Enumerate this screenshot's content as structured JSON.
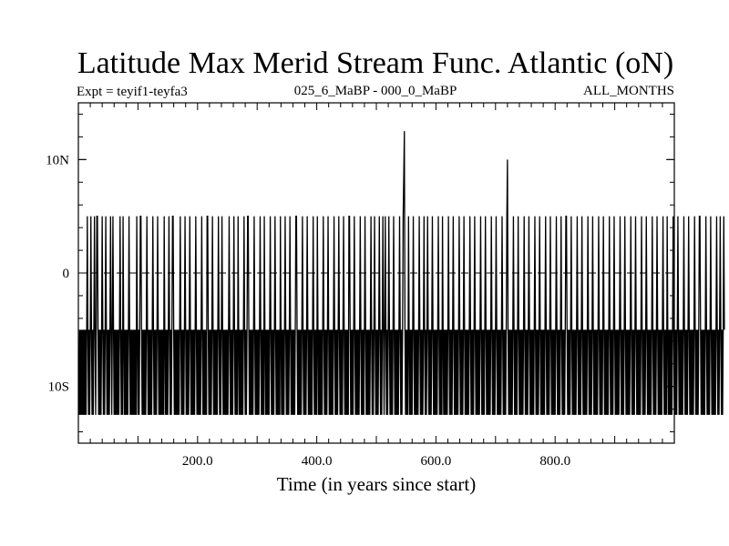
{
  "chart_data": {
    "type": "line",
    "title": "Latitude Max Merid Stream Func. Atlantic (oN)",
    "subtitle_left": "Expt = teyif1-teyfa3",
    "subtitle_center": "025_6_MaBP - 000_0_MaBP",
    "subtitle_right": "ALL_MONTHS",
    "xlabel": "Time (in years since start)",
    "ylabel": "",
    "xlim": [
      0,
      1000
    ],
    "ylim": [
      -15,
      15
    ],
    "x_ticks": [
      {
        "value": 200,
        "label": "200.0"
      },
      {
        "value": 400,
        "label": "400.0"
      },
      {
        "value": 600,
        "label": "600.0"
      },
      {
        "value": 800,
        "label": "800.0"
      }
    ],
    "y_ticks": [
      {
        "value": 10,
        "label": "10N"
      },
      {
        "value": 0,
        "label": "0"
      },
      {
        "value": -10,
        "label": "10S"
      }
    ],
    "zero_line": {
      "value": 0,
      "style": "dashed"
    },
    "grid": false,
    "legend": "none",
    "line_color": "#000000",
    "series": [
      {
        "x_start": 1,
        "x_step": 1,
        "y": [
          -12.5,
          -5,
          -12.5,
          -5,
          -12.5,
          -5,
          -12.5,
          -5,
          -12.5,
          -5,
          -12.5,
          -5,
          -12.5,
          -5,
          5,
          -5,
          -12.5,
          -5,
          -12.5,
          -5,
          5,
          -5,
          -12.5,
          -5,
          -12.5,
          -5,
          5,
          -5,
          -12.5,
          -5,
          5,
          5,
          -5,
          -12.5,
          -5,
          -12.5,
          -5,
          -12.5,
          -5,
          5,
          -5,
          -12.5,
          -5,
          -12.5,
          -5,
          5,
          -5,
          -12.5,
          -5,
          -12.5,
          -5,
          -12.5,
          -5,
          5,
          -5,
          -12.5,
          -5,
          5,
          -5,
          -12.5,
          -5,
          -12.5,
          -5,
          -12.5,
          -5,
          -12.5,
          -5,
          -12.5,
          -5,
          5,
          -5,
          -12.5,
          -5,
          -12.5,
          5,
          -5,
          -12.5,
          -5,
          -12.5,
          -5,
          -12.5,
          -5,
          -12.5,
          -5,
          5,
          -5,
          -12.5,
          -5,
          -12.5,
          -5,
          -12.5,
          -5,
          -12.5,
          -5,
          -12.5,
          -5,
          -12.5,
          5,
          -5,
          -12.5,
          -5,
          -12.5,
          -5,
          5,
          5,
          -5,
          -12.5,
          -5,
          -12.5,
          -5,
          -12.5,
          -5,
          -12.5,
          -5,
          5,
          -5,
          -12.5,
          -5,
          -12.5,
          -5,
          -12.5,
          -5,
          -12.5,
          -5,
          5,
          -5,
          -12.5,
          -5,
          -12.5,
          -5,
          -12.5,
          -5,
          5,
          -5,
          -12.5,
          -5,
          -12.5,
          -5,
          -12.5,
          -5,
          -12.5,
          -5,
          -12.5,
          5,
          -5,
          -12.5,
          -5,
          -12.5,
          -5,
          -12.5,
          -5,
          5,
          -5,
          -12.5,
          -5,
          -12.5,
          -5,
          5,
          5,
          -5,
          -12.5,
          -5,
          -12.5,
          -5,
          -12.5,
          -5,
          -12.5,
          -5,
          -12.5,
          -5,
          5,
          -5,
          -12.5,
          -5,
          -12.5,
          -5,
          -12.5,
          -5,
          5,
          -5,
          -12.5,
          -5,
          -12.5,
          -5,
          -12.5,
          -5,
          5,
          -5,
          -12.5,
          -5,
          -12.5,
          -5,
          -12.5,
          -5,
          -12.5,
          -5,
          5,
          -5,
          -12.5,
          -5,
          -12.5,
          -5,
          -12.5,
          -5,
          -12.5,
          -5,
          5,
          -5,
          -12.5,
          -5,
          -12.5,
          -5,
          -12.5,
          -5,
          -12.5,
          5,
          5,
          -5,
          -12.5,
          -5,
          -12.5,
          -5,
          -12.5,
          -5,
          5,
          -5,
          -12.5,
          -5,
          -12.5,
          -5,
          -12.5,
          -5,
          -12.5,
          -5,
          5,
          -5,
          -12.5,
          -5,
          -12.5,
          -5,
          5,
          -5,
          -12.5,
          -5,
          -12.5,
          -5,
          -12.5,
          -5,
          -12.5,
          -5,
          -12.5,
          -5,
          5,
          -5,
          -12.5,
          -5,
          -12.5,
          -5,
          -12.5,
          -5,
          5,
          -5,
          -12.5,
          -5,
          -12.5,
          -5,
          -12.5,
          5,
          -5,
          -12.5,
          -5,
          -12.5,
          -5,
          -12.5,
          -5,
          -12.5,
          -5,
          5,
          -5,
          -12.5,
          -5,
          -12.5,
          -5,
          5,
          5,
          -5,
          -12.5,
          -5,
          -12.5,
          -5,
          -12.5,
          -5,
          -12.5,
          -5,
          5,
          -5,
          -12.5,
          -5,
          -12.5,
          -5,
          -12.5,
          -5,
          -12.5,
          -5,
          5,
          -5,
          -12.5,
          -5,
          -12.5,
          -5,
          -12.5,
          5,
          -5,
          -12.5,
          -5,
          -12.5,
          -5,
          -12.5,
          -5,
          -12.5,
          -5,
          5,
          -5,
          -12.5,
          -5,
          -12.5,
          -5,
          -12.5,
          -5,
          5,
          -5,
          -12.5,
          -5,
          -12.5,
          -5,
          -12.5,
          -5,
          -12.5,
          5,
          -5,
          -12.5,
          -5,
          -12.5,
          -5,
          -12.5,
          -5,
          5,
          -5,
          -12.5,
          -5,
          -12.5,
          -5,
          -12.5,
          -5,
          5,
          -5,
          -12.5,
          -5,
          -12.5,
          -5,
          -12.5,
          -5,
          -12.5,
          -5,
          5,
          5,
          -5,
          -12.5,
          -5,
          -12.5,
          -5,
          -12.5,
          -5,
          -12.5,
          -5,
          5,
          -5,
          -12.5,
          -5,
          -12.5,
          -5,
          -12.5,
          -5,
          5,
          -5,
          -12.5,
          -5,
          -12.5,
          -5,
          -12.5,
          -5,
          -12.5,
          -5,
          5,
          -5,
          -12.5,
          -5,
          -12.5,
          -5,
          -12.5,
          5,
          -5,
          -12.5,
          -5,
          -12.5,
          -5,
          -12.5,
          -5,
          -12.5,
          -5,
          5,
          -5,
          -12.5,
          -5,
          -12.5,
          -5,
          -12.5,
          -5,
          5,
          -5,
          -12.5,
          -5,
          -12.5,
          -5,
          -12.5,
          -5,
          -12.5,
          -5,
          5,
          -5,
          -12.5,
          -5,
          -12.5,
          -5,
          -12.5,
          -5,
          5,
          -5,
          -12.5,
          -5,
          -12.5,
          -5,
          -12.5,
          -5,
          5,
          -5,
          -12.5,
          -5,
          -12.5,
          -5,
          -12.5,
          -5,
          -12.5,
          5,
          5,
          -5,
          -12.5,
          -5,
          -12.5,
          -5,
          -12.5,
          -5,
          5,
          -5,
          -12.5,
          -5,
          -12.5,
          -5,
          -12.5,
          -5,
          -12.5,
          -5,
          5,
          -5,
          -12.5,
          -5,
          -12.5,
          -5,
          -12.5,
          -5,
          5,
          -5,
          -12.5,
          -5,
          -12.5,
          -5,
          -12.5,
          -5,
          -12.5,
          -5,
          5,
          -5,
          -12.5,
          -5,
          -12.5,
          -5,
          5,
          -5,
          -12.5,
          -5,
          -12.5,
          -5,
          -12.5,
          -5,
          5,
          -5,
          -12.5,
          -5,
          -12.5,
          -5,
          5,
          -5,
          -12.5,
          -5,
          5,
          -5,
          -12.5,
          -5,
          -12.5,
          -5,
          5,
          -5,
          -12.5,
          -5,
          -12.5,
          -5,
          -12.5,
          -5,
          5,
          -5,
          -12.5,
          -5,
          -12.5,
          -5,
          -12.5,
          -5,
          -12.5,
          -5,
          5,
          -5,
          -12.5,
          -5,
          -12.5,
          -5,
          5,
          8.5,
          12.5,
          -5,
          -12.5,
          -5,
          -12.5,
          -5,
          -12.5,
          5,
          -5,
          -12.5,
          -5,
          -12.5,
          -5,
          -12.5,
          -5,
          5,
          -5,
          -12.5,
          -5,
          -12.5,
          -5,
          -12.5,
          -5,
          -12.5,
          -5,
          5,
          -5,
          -12.5,
          -5,
          -12.5,
          -5,
          -12.5,
          -5,
          5,
          -5,
          -12.5,
          -5,
          -12.5,
          -5,
          5,
          -5,
          -12.5,
          -5,
          -12.5,
          -5,
          -12.5,
          -5,
          5,
          -5,
          -12.5,
          -5,
          -12.5,
          -5,
          -12.5,
          -5,
          -12.5,
          -5,
          5,
          -5,
          -12.5,
          -5,
          -12.5,
          -5,
          -12.5,
          5,
          -5,
          -12.5,
          -5,
          -12.5,
          -5,
          -12.5,
          -5,
          -12.5,
          -5,
          5,
          -5,
          -12.5,
          -5,
          -12.5,
          -5,
          -12.5,
          -5,
          5,
          -5,
          -12.5,
          -5,
          -12.5,
          -5,
          -12.5,
          -5,
          -12.5,
          -5,
          5,
          -5,
          -12.5,
          -5,
          -12.5,
          -5,
          -12.5,
          -5,
          5,
          -5,
          -12.5,
          -5,
          -12.5,
          -5,
          -12.5,
          -5,
          -12.5,
          -5,
          5,
          -5,
          -12.5,
          -5,
          -12.5,
          -5,
          -12.5,
          -5,
          5,
          -5,
          -12.5,
          -5,
          -12.5,
          -5,
          -12.5,
          -5,
          -12.5,
          -5,
          5,
          -5,
          -12.5,
          -5,
          -12.5,
          -5,
          -12.5,
          -5,
          5,
          -5,
          -12.5,
          -5,
          -12.5,
          -5,
          -12.5,
          -5,
          -12.5,
          -5,
          5,
          -5,
          -12.5,
          -5,
          -12.5,
          -5,
          -12.5,
          -5,
          5,
          -5,
          -12.5,
          -5,
          -12.5,
          -5,
          -12.5,
          -5,
          -12.5,
          -5,
          5,
          -5,
          -12.5,
          -5,
          -12.5,
          -5,
          -12.5,
          -5,
          5,
          10,
          -5,
          -12.5,
          -5,
          -12.5,
          -5,
          -12.5,
          -5,
          -12.5,
          -5,
          5,
          -5,
          -12.5,
          -5,
          -12.5,
          -5,
          -12.5,
          -5,
          5,
          -5,
          -12.5,
          -5,
          -12.5,
          -5,
          -12.5,
          -5,
          -12.5,
          -5,
          5,
          -5,
          -12.5,
          -5,
          -12.5,
          -5,
          -12.5,
          -5,
          5,
          -5,
          -12.5,
          -5,
          -12.5,
          -5,
          -12.5,
          -5,
          -12.5,
          -5,
          5,
          -5,
          -12.5,
          -5,
          -12.5,
          -5,
          -12.5,
          -5,
          5,
          -5,
          -12.5,
          -5,
          -12.5,
          -5,
          -12.5,
          -5,
          -12.5,
          -5,
          5,
          -5,
          -12.5,
          -5,
          -12.5,
          -5,
          -12.5,
          -5,
          5,
          -5,
          -12.5,
          -5,
          -12.5,
          -5,
          -12.5,
          -5,
          -12.5,
          -5,
          5,
          -5,
          -12.5,
          -5,
          -12.5,
          -5,
          -12.5,
          -5,
          5,
          -5,
          -12.5,
          -5,
          -12.5,
          -5,
          -12.5,
          -5,
          5,
          5,
          -5,
          -12.5,
          -5,
          -12.5,
          -5,
          -12.5,
          -5,
          5,
          -5,
          -12.5,
          -5,
          -12.5,
          -5,
          -12.5,
          -5,
          -12.5,
          -5,
          5,
          -5,
          -12.5,
          -5,
          -12.5,
          -5,
          -12.5,
          -5,
          5,
          -5,
          -12.5,
          -5,
          -12.5,
          -5,
          -12.5,
          -5,
          -12.5,
          -5,
          5,
          -5,
          -12.5,
          -5,
          -12.5,
          -5,
          -12.5,
          -5,
          5,
          -5,
          -12.5,
          -5,
          -12.5,
          -5,
          -12.5,
          -5,
          -12.5,
          -5,
          5,
          -5,
          -12.5,
          -5,
          -12.5,
          -5,
          -12.5,
          -5,
          5,
          -5,
          -12.5,
          -5,
          -12.5,
          -5,
          -12.5,
          -5,
          -12.5,
          -5,
          5,
          -5,
          -12.5,
          -5,
          -12.5,
          -5,
          -12.5,
          -5,
          5,
          -5,
          -12.5,
          -5,
          -12.5,
          -5,
          -12.5,
          -5,
          -12.5,
          -5,
          5,
          -5,
          -12.5,
          -5,
          -12.5,
          -5,
          -12.5,
          -5,
          5,
          -5,
          -12.5,
          -5,
          -12.5,
          -5,
          -12.5,
          -5,
          -12.5,
          -5,
          5,
          -5,
          -12.5,
          -5,
          -12.5,
          -5,
          -12.5,
          -5,
          5,
          -5,
          -12.5,
          -5,
          -12.5,
          -5,
          -12.5,
          -5,
          -12.5,
          -5,
          5,
          -5,
          -12.5,
          -5,
          -12.5,
          -5,
          -12.5,
          -5,
          5,
          -5,
          -12.5,
          -5,
          -12.5,
          -5,
          -12.5,
          -5,
          -12.5,
          -5,
          5,
          -5,
          -12.5,
          -5,
          -12.5,
          -5,
          -12.5,
          -5,
          5,
          -5,
          -12.5,
          -5,
          -12.5,
          -5,
          -12.5,
          -5,
          -12.5,
          -5,
          5,
          -5,
          -12.5,
          -5,
          -12.5,
          -5,
          -12.5,
          5,
          -5,
          -12.5,
          -5,
          -12.5,
          -5,
          -12.5,
          -5,
          -12.5,
          -5,
          5,
          -5,
          -12.5,
          -5,
          -12.5,
          -5,
          -12.5,
          -5,
          5,
          -5,
          -12.5,
          -5,
          -12.5,
          -5,
          -12.5,
          -5,
          -12.5,
          -5,
          5,
          -5,
          -12.5,
          -5,
          -12.5,
          -5,
          -12.5,
          -5,
          5,
          -5,
          -12.5,
          -5,
          -12.5,
          -5,
          -12.5,
          -5,
          -12.5,
          -5,
          5,
          -5,
          -12.5,
          -5,
          -12.5,
          -5,
          -12.5,
          -5,
          5,
          5,
          -5,
          -12.5,
          -5,
          -12.5,
          -5,
          -12.5,
          -5,
          -12.5,
          -5,
          5,
          -5,
          -12.5,
          -5,
          -12.5,
          -5,
          -12.5,
          -5,
          5,
          -5,
          -12.5,
          -5,
          -12.5,
          -5,
          -12.5,
          -5,
          -12.5,
          -5,
          5,
          -5,
          -12.5,
          -5,
          -12.5,
          -5,
          5,
          -5,
          -12.5,
          -5,
          -12.5,
          -5,
          5,
          -5
        ]
      }
    ]
  }
}
